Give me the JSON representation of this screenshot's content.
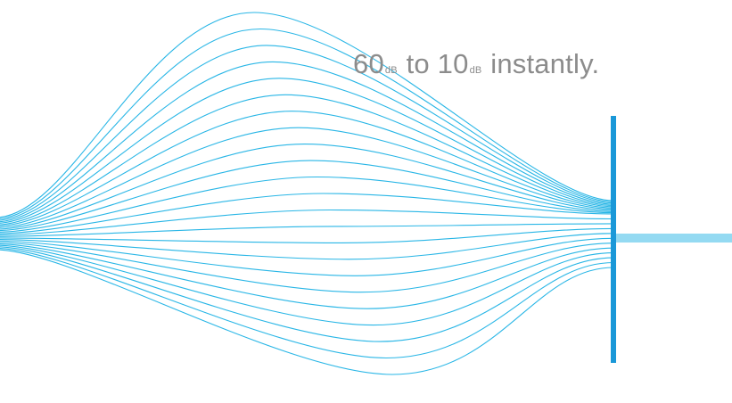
{
  "headline": {
    "value_from": "60",
    "unit_from": "dB",
    "connector": "to",
    "value_to": "10",
    "unit_to": "dB",
    "tail": "instantly."
  },
  "colors": {
    "waveform": "#29b6e6",
    "barrier": "#1a98d8",
    "text": "#8c8c8c"
  },
  "icons": {
    "waveform": "waveform-lines-icon",
    "barrier": "noise-barrier-icon"
  }
}
